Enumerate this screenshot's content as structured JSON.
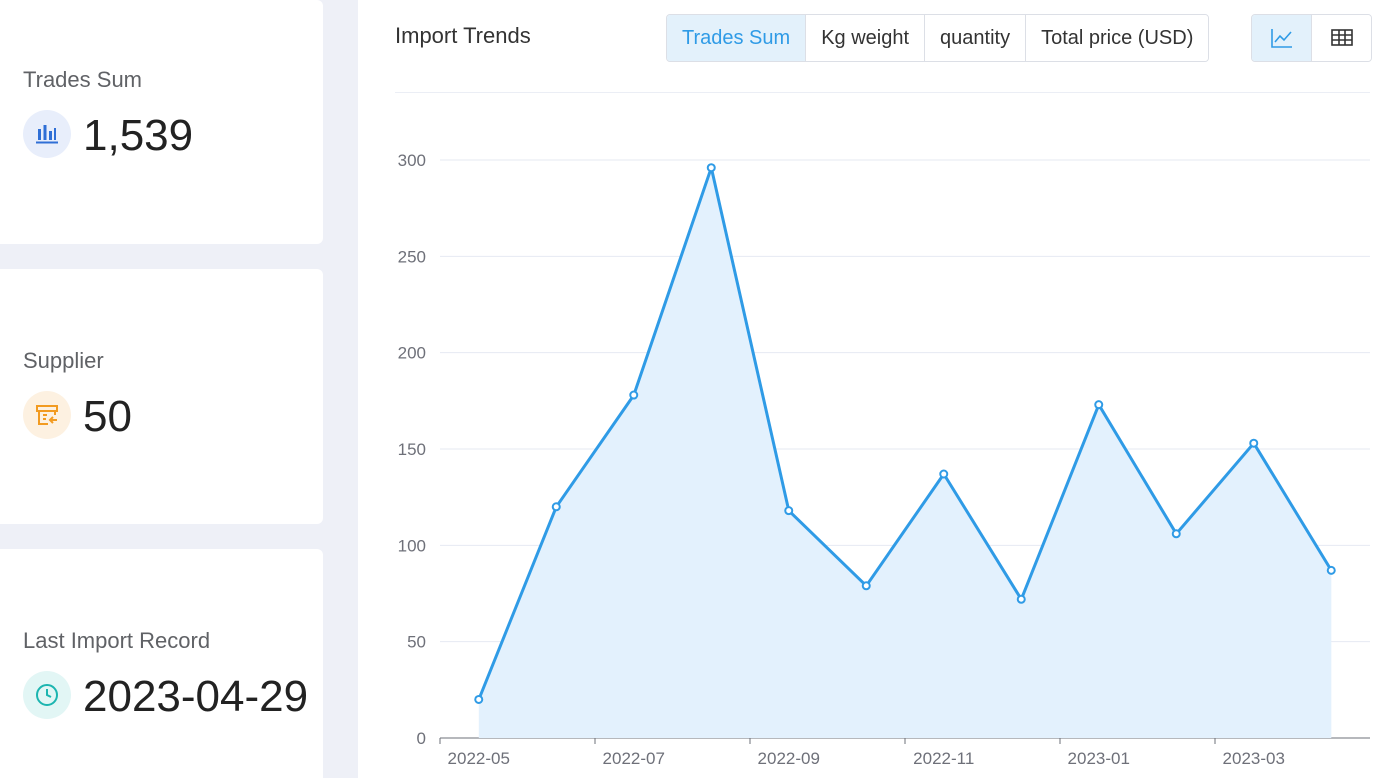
{
  "stats": [
    {
      "label": "Trades Sum",
      "value": "1,539",
      "icon": "bar-chart-icon",
      "icon_color": "#2f6fd6",
      "icon_bg": "#e8eefb"
    },
    {
      "label": "Supplier",
      "value": "50",
      "icon": "supplier-store-icon",
      "icon_color": "#f29b21",
      "icon_bg": "#fdf1e1"
    },
    {
      "label": "Last Import Record",
      "value": "2023-04-29",
      "icon": "clock-icon",
      "icon_color": "#1cb5b0",
      "icon_bg": "#e2f6f5"
    }
  ],
  "panel": {
    "title": "Import Trends",
    "metrics": [
      "Trades Sum",
      "Kg weight",
      "quantity",
      "Total price (USD)"
    ],
    "active_metric": "Trades Sum",
    "views": [
      {
        "icon": "line-chart-icon",
        "active": true
      },
      {
        "icon": "table-icon",
        "active": false
      }
    ]
  },
  "colors": {
    "accent": "#2f9be6",
    "area": "#e3f1fd",
    "grid": "#e6e9f2",
    "axis_text": "#6e7079"
  },
  "chart_data": {
    "type": "area",
    "x": [
      "2022-05",
      "2022-06",
      "2022-07",
      "2022-08",
      "2022-09",
      "2022-10",
      "2022-11",
      "2022-12",
      "2023-01",
      "2023-02",
      "2023-03",
      "2023-04"
    ],
    "x_tick_labels": [
      "2022-05",
      "2022-07",
      "2022-09",
      "2022-11",
      "2023-01",
      "2023-03"
    ],
    "series": [
      {
        "values": [
          20,
          120,
          178,
          296,
          118,
          79,
          137,
          72,
          173,
          106,
          153,
          87
        ]
      }
    ],
    "ylim": [
      0,
      300
    ],
    "yticks": [
      0,
      50,
      100,
      150,
      200,
      250,
      300
    ],
    "grid": true,
    "legend": "none"
  }
}
